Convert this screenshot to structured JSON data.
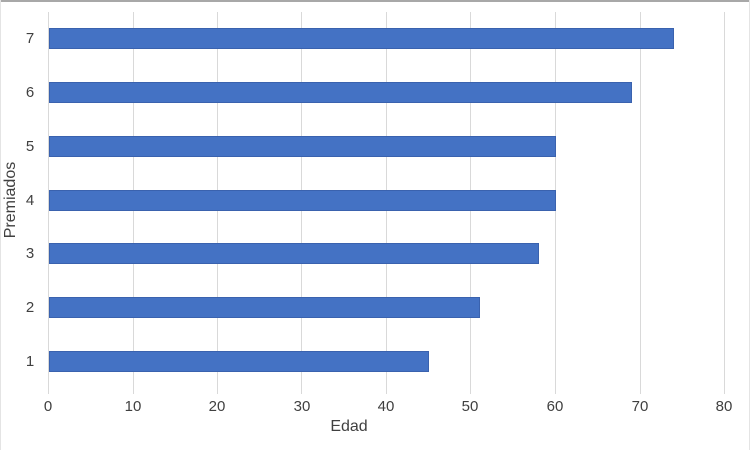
{
  "chart_data": {
    "type": "bar",
    "orientation": "horizontal",
    "title": "",
    "xlabel": "Edad",
    "ylabel": "Premiados",
    "categories": [
      "7",
      "6",
      "5",
      "4",
      "3",
      "2",
      "1"
    ],
    "categories_order": "top-to-bottom",
    "series": [
      {
        "name": "Edad",
        "values": [
          74,
          69,
          60,
          60,
          58,
          51,
          45
        ]
      }
    ],
    "xlim": [
      0,
      80
    ],
    "xticks": [
      0,
      10,
      20,
      30,
      40,
      50,
      60,
      70,
      80
    ],
    "grid": "vertical-gridlines-on",
    "legend_position": "none",
    "bar_color": "#4472C4",
    "bar_edge_color": "#3a62ae",
    "gridline_color": "#d9d9d9",
    "text_color": "#404040",
    "background_color": "#ffffff"
  }
}
